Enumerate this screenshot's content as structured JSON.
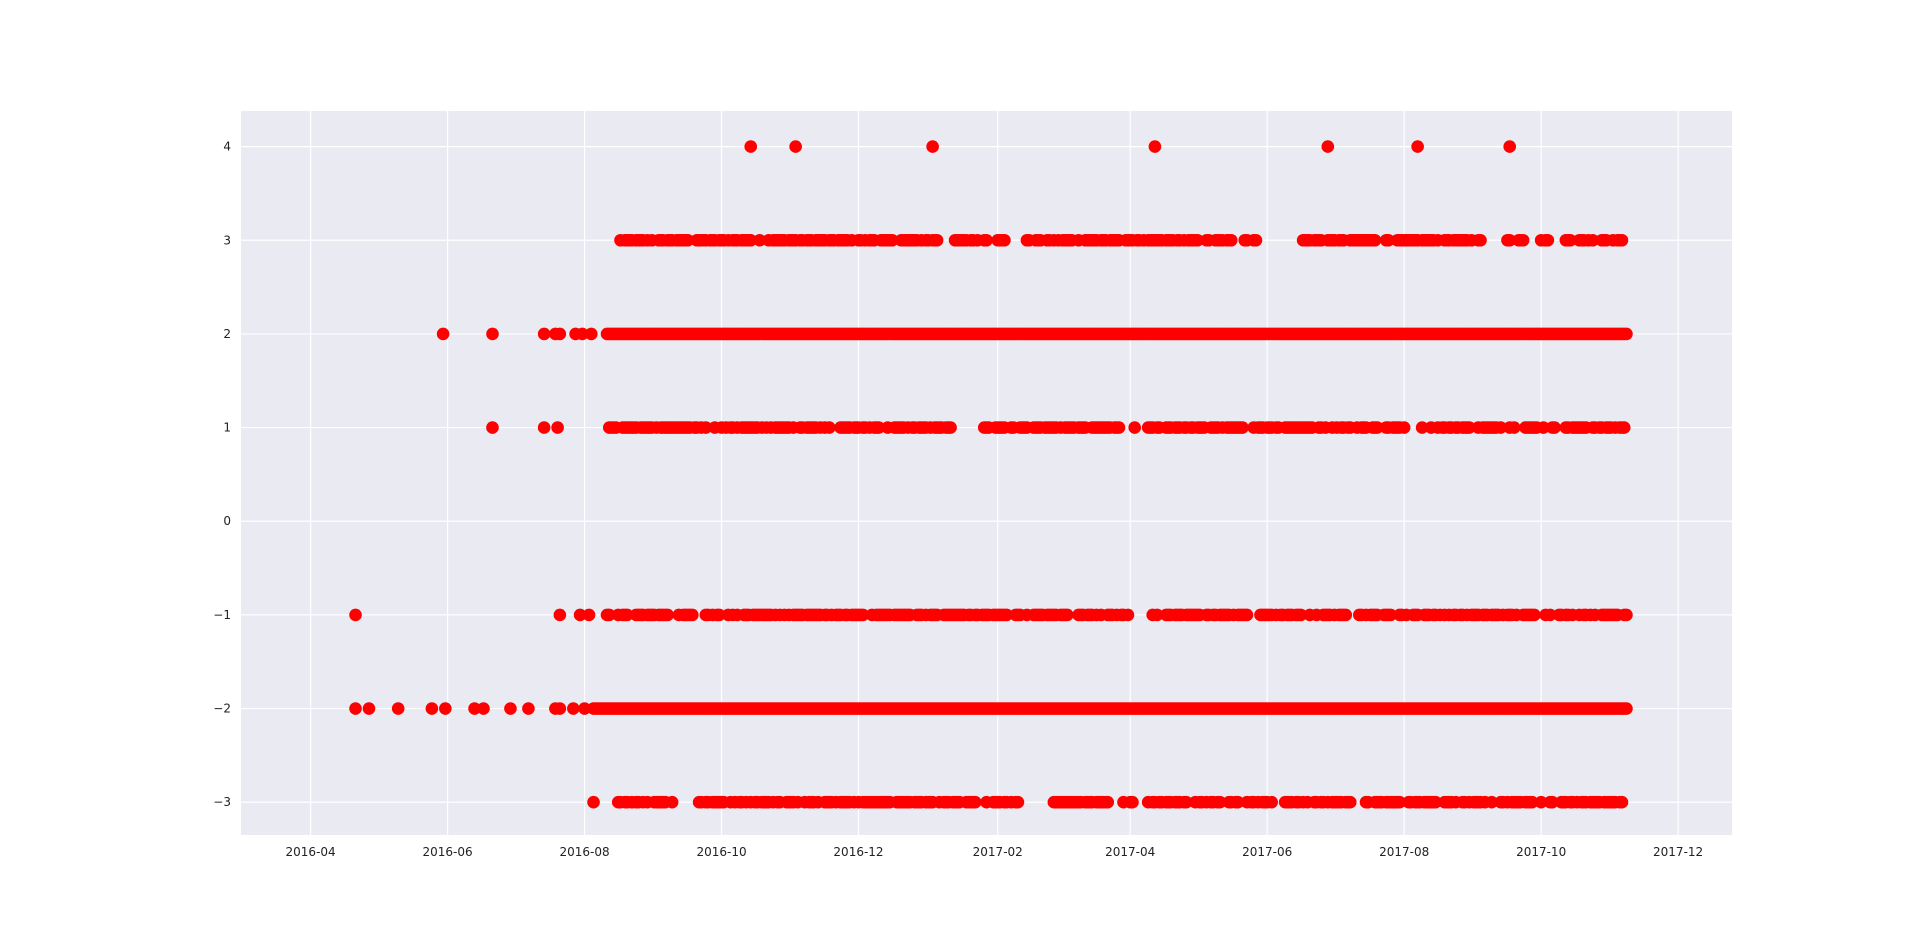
{
  "chart_data": {
    "type": "scatter",
    "title": "",
    "xlabel": "",
    "ylabel": "",
    "x_axis_type": "date",
    "xlim": [
      "2016-03-01",
      "2017-12-25"
    ],
    "ylim": [
      -3.35,
      4.38
    ],
    "x_tick_values": [
      "2016-04-01",
      "2016-06-01",
      "2016-08-01",
      "2016-10-01",
      "2016-12-01",
      "2017-02-01",
      "2017-04-01",
      "2017-06-01",
      "2017-08-01",
      "2017-10-01",
      "2017-12-01"
    ],
    "x_tick_labels": [
      "2016-04",
      "2016-06",
      "2016-08",
      "2016-10",
      "2016-12",
      "2017-02",
      "2017-04",
      "2017-06",
      "2017-08",
      "2017-10",
      "2017-12"
    ],
    "y_ticks": [
      -3,
      -2,
      -1,
      0,
      1,
      2,
      3,
      4
    ],
    "y_tick_labels": [
      "−3",
      "−2",
      "−1",
      "0",
      "1",
      "2",
      "3",
      "4"
    ],
    "grid": true,
    "marker_color": "#ff0000",
    "plot_background": "#eaeaf2",
    "grid_color": "#ffffff",
    "series": [
      {
        "points": [
          {
            "x": "2016-10-14",
            "y": 4
          },
          {
            "x": "2016-11-03",
            "y": 4
          },
          {
            "x": "2017-01-03",
            "y": 4
          },
          {
            "x": "2017-04-12",
            "y": 4
          },
          {
            "x": "2017-06-28",
            "y": 4
          },
          {
            "x": "2017-08-07",
            "y": 4
          },
          {
            "x": "2017-09-17",
            "y": 4
          },
          {
            "x": "2016-04-21",
            "y": -1
          },
          {
            "x": "2016-05-30",
            "y": 2
          },
          {
            "x": "2016-06-21",
            "y": 2
          },
          {
            "x": "2016-07-14",
            "y": 2
          },
          {
            "x": "2016-07-19",
            "y": 2
          },
          {
            "x": "2016-07-21",
            "y": 2
          },
          {
            "x": "2016-07-28",
            "y": 2
          },
          {
            "x": "2016-07-31",
            "y": 2
          },
          {
            "x": "2016-08-04",
            "y": 2
          },
          {
            "x": "2016-06-21",
            "y": 1
          },
          {
            "x": "2016-07-14",
            "y": 1
          },
          {
            "x": "2016-07-20",
            "y": 1
          },
          {
            "x": "2016-07-21",
            "y": -1
          },
          {
            "x": "2016-07-30",
            "y": -1
          },
          {
            "x": "2016-08-03",
            "y": -1
          },
          {
            "x": "2016-04-21",
            "y": -2
          },
          {
            "x": "2016-04-27",
            "y": -2
          },
          {
            "x": "2016-05-10",
            "y": -2
          },
          {
            "x": "2016-05-25",
            "y": -2
          },
          {
            "x": "2016-05-31",
            "y": -2
          },
          {
            "x": "2016-06-13",
            "y": -2
          },
          {
            "x": "2016-06-17",
            "y": -2
          },
          {
            "x": "2016-06-29",
            "y": -2
          },
          {
            "x": "2016-07-07",
            "y": -2
          },
          {
            "x": "2016-07-19",
            "y": -2
          },
          {
            "x": "2016-07-21",
            "y": -2
          },
          {
            "x": "2016-07-27",
            "y": -2
          },
          {
            "x": "2016-08-01",
            "y": -2
          },
          {
            "x": "2016-08-05",
            "y": -3
          }
        ],
        "continuous_runs": [
          {
            "y": 2,
            "from": "2016-08-11",
            "to": "2017-11-08"
          },
          {
            "y": -2,
            "from": "2016-08-05",
            "to": "2017-11-08"
          }
        ],
        "irregular_runs": [
          {
            "y": 3,
            "from": "2016-08-17",
            "to": "2017-11-08",
            "gaps": [
              [
                "2017-01-07",
                "2017-01-10"
              ],
              [
                "2017-02-05",
                "2017-02-12"
              ],
              [
                "2017-05-30",
                "2017-06-15"
              ],
              [
                "2017-09-05",
                "2017-09-15"
              ],
              [
                "2017-10-05",
                "2017-10-10"
              ]
            ]
          },
          {
            "y": 1,
            "from": "2016-08-11",
            "to": "2017-11-08",
            "gaps": [
              [
                "2017-01-12",
                "2017-01-15"
              ],
              [
                "2017-01-18",
                "2017-01-22"
              ],
              [
                "2017-03-28",
                "2017-04-02"
              ],
              [
                "2017-04-05",
                "2017-04-08"
              ],
              [
                "2017-08-02",
                "2017-08-07"
              ]
            ]
          },
          {
            "y": -1,
            "from": "2016-08-11",
            "to": "2017-11-08",
            "gaps": [
              [
                "2017-04-01",
                "2017-04-10"
              ],
              [
                "2017-05-25",
                "2017-05-28"
              ]
            ]
          },
          {
            "y": -3,
            "from": "2016-08-14",
            "to": "2017-11-06",
            "gaps": [
              [
                "2016-09-10",
                "2016-09-20"
              ],
              [
                "2017-02-11",
                "2017-02-25"
              ],
              [
                "2017-04-03",
                "2017-04-08"
              ]
            ]
          }
        ]
      }
    ]
  }
}
